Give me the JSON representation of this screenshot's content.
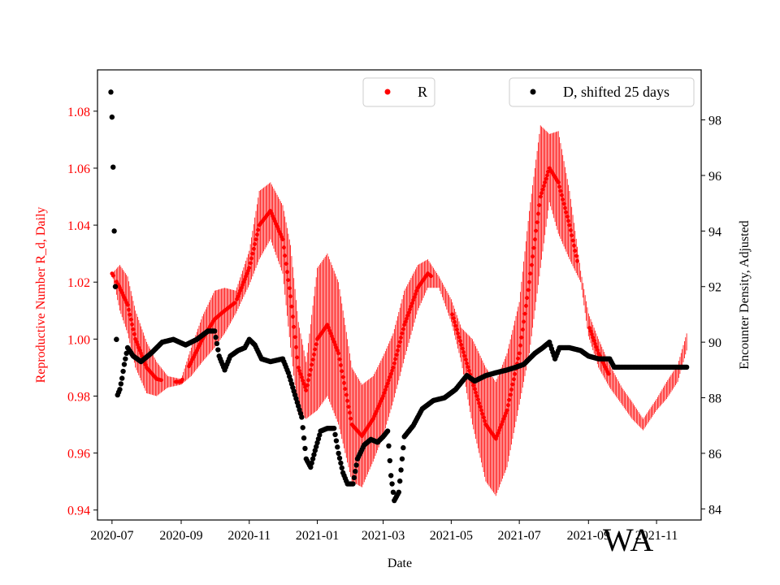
{
  "chart_data": {
    "type": "scatter",
    "xlabel": "Date",
    "ylabel_left": "Reproductive Number R_d, Daily",
    "ylabel_right": "Encounter Density, Adjusted",
    "region_label": "WA",
    "x_tick_labels": [
      "2020-07",
      "2020-09",
      "2020-11",
      "2021-01",
      "2021-03",
      "2021-05",
      "2021-07",
      "2021-09",
      "2021-11"
    ],
    "x_tick_dates": [
      "2020-07-01",
      "2020-09-01",
      "2020-11-01",
      "2021-01-01",
      "2021-03-01",
      "2021-05-01",
      "2021-07-01",
      "2021-09-01",
      "2021-11-01"
    ],
    "x_range": [
      "2020-06-18",
      "2021-12-11"
    ],
    "y_left_ticks": [
      0.94,
      0.96,
      0.98,
      1.0,
      1.02,
      1.04,
      1.06,
      1.08
    ],
    "y_left_tick_labels": [
      "0.94",
      "0.96",
      "0.98",
      "1.00",
      "1.02",
      "1.04",
      "1.06",
      "1.08"
    ],
    "y_left_range": [
      0.9365,
      1.0945
    ],
    "y_right_ticks": [
      84,
      86,
      88,
      90,
      92,
      94,
      96,
      98
    ],
    "y_right_tick_labels": [
      "84",
      "86",
      "88",
      "90",
      "92",
      "94",
      "96",
      "98"
    ],
    "y_right_range": [
      83.6,
      99.8
    ],
    "left_axis_color": "#ff0000",
    "series": [
      {
        "name": "R",
        "axis": "left",
        "color": "#ff0000",
        "marker": "dot",
        "error_bars": true,
        "points": [
          [
            "2020-07-01",
            1.023,
            0.0
          ],
          [
            "2020-07-08",
            1.018,
            0.008
          ],
          [
            "2020-07-15",
            1.012,
            0.01
          ],
          [
            "2020-07-22",
            1.0,
            0.01
          ],
          [
            "2020-08-01",
            0.99,
            0.009
          ],
          [
            "2020-08-10",
            0.986,
            0.006
          ],
          [
            "2020-08-20",
            0.985,
            0.002
          ],
          [
            "2020-09-01",
            0.985,
            0.001
          ],
          [
            "2020-09-10",
            0.992,
            0.005
          ],
          [
            "2020-09-20",
            1.0,
            0.008
          ],
          [
            "2020-10-01",
            1.007,
            0.01
          ],
          [
            "2020-10-10",
            1.01,
            0.008
          ],
          [
            "2020-10-20",
            1.013,
            0.004
          ],
          [
            "2020-11-01",
            1.025,
            0.006
          ],
          [
            "2020-11-10",
            1.04,
            0.012
          ],
          [
            "2020-11-20",
            1.045,
            0.01
          ],
          [
            "2020-12-01",
            1.035,
            0.012
          ],
          [
            "2020-12-08",
            1.015,
            0.018
          ],
          [
            "2020-12-15",
            0.99,
            0.016
          ],
          [
            "2020-12-22",
            0.982,
            0.01
          ],
          [
            "2021-01-01",
            1.0,
            0.025
          ],
          [
            "2021-01-10",
            1.005,
            0.025
          ],
          [
            "2021-01-20",
            0.995,
            0.025
          ],
          [
            "2021-02-01",
            0.97,
            0.02
          ],
          [
            "2021-02-10",
            0.966,
            0.018
          ],
          [
            "2021-02-20",
            0.972,
            0.015
          ],
          [
            "2021-03-01",
            0.98,
            0.014
          ],
          [
            "2021-03-10",
            0.99,
            0.012
          ],
          [
            "2021-03-20",
            1.005,
            0.012
          ],
          [
            "2021-04-01",
            1.018,
            0.008
          ],
          [
            "2021-04-10",
            1.023,
            0.005
          ],
          [
            "2021-04-20",
            1.02,
            0.002
          ],
          [
            "2021-05-01",
            1.01,
            0.004
          ],
          [
            "2021-05-10",
            0.998,
            0.006
          ],
          [
            "2021-05-20",
            0.985,
            0.015
          ],
          [
            "2021-06-01",
            0.97,
            0.02
          ],
          [
            "2021-06-10",
            0.965,
            0.02
          ],
          [
            "2021-06-20",
            0.975,
            0.02
          ],
          [
            "2021-07-01",
            0.995,
            0.018
          ],
          [
            "2021-07-10",
            1.02,
            0.025
          ],
          [
            "2021-07-20",
            1.05,
            0.025
          ],
          [
            "2021-07-28",
            1.06,
            0.012
          ],
          [
            "2021-08-05",
            1.055,
            0.018
          ],
          [
            "2021-08-15",
            1.04,
            0.012
          ],
          [
            "2021-08-25",
            1.022,
            0.002
          ],
          [
            "2021-09-01",
            1.005,
            0.004
          ],
          [
            "2021-09-10",
            0.995,
            0.005
          ],
          [
            "2021-09-20",
            0.987,
            0.004
          ],
          [
            "2021-10-01",
            0.98,
            0.003
          ],
          [
            "2021-10-10",
            0.975,
            0.003
          ],
          [
            "2021-10-20",
            0.97,
            0.002
          ],
          [
            "2021-11-01",
            0.977,
            0.002
          ],
          [
            "2021-11-10",
            0.982,
            0.003
          ],
          [
            "2021-11-20",
            0.988,
            0.003
          ],
          [
            "2021-11-28",
            0.999,
            0.003
          ]
        ]
      },
      {
        "name": "D, shifted 25 days",
        "axis": "right",
        "color": "#000000",
        "marker": "dot",
        "points": [
          [
            "2020-06-30",
            99.0
          ],
          [
            "2020-07-01",
            98.1
          ],
          [
            "2020-07-02",
            96.3
          ],
          [
            "2020-07-03",
            94.0
          ],
          [
            "2020-07-04",
            92.0
          ],
          [
            "2020-07-05",
            90.1
          ],
          [
            "2020-07-06",
            88.1
          ],
          [
            "2020-07-08",
            88.3
          ],
          [
            "2020-07-10",
            88.7
          ],
          [
            "2020-07-12",
            89.2
          ],
          [
            "2020-07-15",
            89.8
          ],
          [
            "2020-07-20",
            89.5
          ],
          [
            "2020-07-27",
            89.3
          ],
          [
            "2020-08-05",
            89.6
          ],
          [
            "2020-08-15",
            90.0
          ],
          [
            "2020-08-25",
            90.1
          ],
          [
            "2020-09-05",
            89.9
          ],
          [
            "2020-09-15",
            90.1
          ],
          [
            "2020-09-25",
            90.4
          ],
          [
            "2020-10-01",
            90.4
          ],
          [
            "2020-10-05",
            89.5
          ],
          [
            "2020-10-10",
            89.0
          ],
          [
            "2020-10-15",
            89.5
          ],
          [
            "2020-10-22",
            89.7
          ],
          [
            "2020-10-28",
            89.8
          ],
          [
            "2020-11-01",
            90.1
          ],
          [
            "2020-11-06",
            89.9
          ],
          [
            "2020-11-12",
            89.4
          ],
          [
            "2020-11-20",
            89.3
          ],
          [
            "2020-12-01",
            89.4
          ],
          [
            "2020-12-06",
            88.9
          ],
          [
            "2020-12-12",
            88.1
          ],
          [
            "2020-12-18",
            87.3
          ],
          [
            "2020-12-22",
            85.8
          ],
          [
            "2020-12-26",
            85.5
          ],
          [
            "2020-12-30",
            86.1
          ],
          [
            "2021-01-04",
            86.8
          ],
          [
            "2021-01-10",
            86.9
          ],
          [
            "2021-01-16",
            86.9
          ],
          [
            "2021-01-20",
            86.0
          ],
          [
            "2021-01-24",
            85.3
          ],
          [
            "2021-01-28",
            84.9
          ],
          [
            "2021-02-02",
            84.9
          ],
          [
            "2021-02-06",
            85.8
          ],
          [
            "2021-02-12",
            86.3
          ],
          [
            "2021-02-18",
            86.5
          ],
          [
            "2021-02-24",
            86.4
          ],
          [
            "2021-03-01",
            86.6
          ],
          [
            "2021-03-05",
            86.8
          ],
          [
            "2021-03-08",
            85.2
          ],
          [
            "2021-03-11",
            84.3
          ],
          [
            "2021-03-15",
            84.6
          ],
          [
            "2021-03-20",
            86.6
          ],
          [
            "2021-03-28",
            87.0
          ],
          [
            "2021-04-05",
            87.6
          ],
          [
            "2021-04-15",
            87.9
          ],
          [
            "2021-04-25",
            88.0
          ],
          [
            "2021-05-05",
            88.3
          ],
          [
            "2021-05-15",
            88.8
          ],
          [
            "2021-05-22",
            88.6
          ],
          [
            "2021-06-01",
            88.8
          ],
          [
            "2021-06-10",
            88.9
          ],
          [
            "2021-06-20",
            89.0
          ],
          [
            "2021-06-28",
            89.1
          ],
          [
            "2021-07-05",
            89.2
          ],
          [
            "2021-07-15",
            89.6
          ],
          [
            "2021-07-22",
            89.8
          ],
          [
            "2021-07-28",
            90.0
          ],
          [
            "2021-08-02",
            89.4
          ],
          [
            "2021-08-06",
            89.8
          ],
          [
            "2021-08-15",
            89.8
          ],
          [
            "2021-08-25",
            89.7
          ],
          [
            "2021-09-01",
            89.5
          ],
          [
            "2021-09-10",
            89.4
          ],
          [
            "2021-09-20",
            89.4
          ],
          [
            "2021-09-24",
            89.1
          ],
          [
            "2021-10-01",
            89.1
          ],
          [
            "2021-10-15",
            89.1
          ],
          [
            "2021-11-01",
            89.1
          ],
          [
            "2021-11-15",
            89.1
          ],
          [
            "2021-11-28",
            89.1
          ]
        ]
      }
    ],
    "legends": [
      {
        "label": "R",
        "color": "#ff0000"
      },
      {
        "label": "D, shifted 25 days",
        "color": "#000000"
      }
    ]
  }
}
